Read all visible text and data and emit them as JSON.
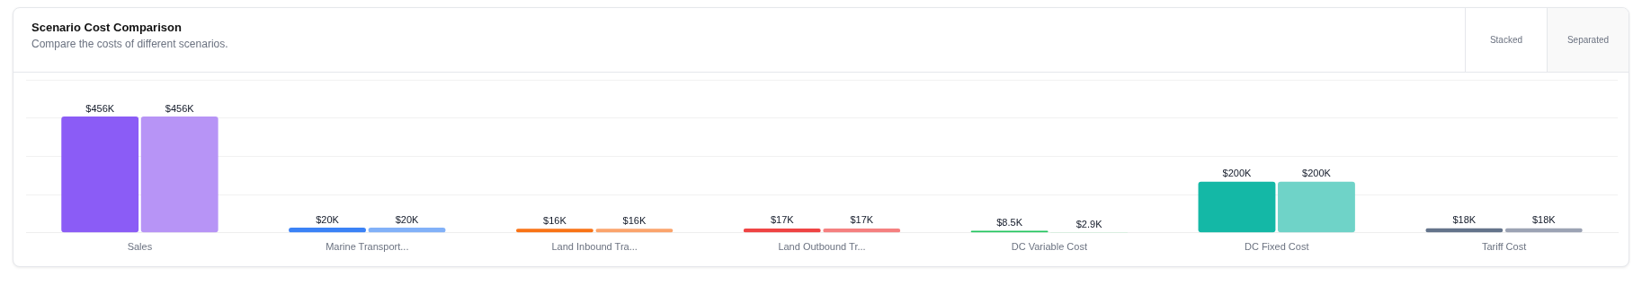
{
  "chart_data": {
    "type": "bar",
    "title": "Scenario Cost Comparison",
    "subtitle": "Compare the costs of different scenarios.",
    "annotations": [
      "Stacked",
      "Separated"
    ],
    "categories": [
      "Sales",
      "Marine Transport...",
      "Land Inbound Tra...",
      "Land Outbound Tr...",
      "DC Variable Cost",
      "DC Fixed Cost",
      "Tariff Cost"
    ],
    "series": [
      {
        "colors": [
          "#8b5cf6",
          "#3b82f6",
          "#f97316",
          "#ef4444",
          "#22c55e",
          "#14b8a6",
          "#64748b"
        ],
        "values": [
          456000,
          20000,
          16000,
          17000,
          8500,
          200000,
          18000
        ],
        "value_labels": [
          "$456K",
          "$20K",
          "$16K",
          "$17K",
          "$8.5K",
          "$200K",
          "$18K"
        ]
      },
      {
        "colors": [
          "#b794f6",
          "#82b1f8",
          "#fba46c",
          "#f58080",
          "#86efac",
          "#6fd3c8",
          "#9ca3b4"
        ],
        "values": [
          456000,
          20000,
          16000,
          17000,
          2900,
          200000,
          18000
        ],
        "value_labels": [
          "$456K",
          "$20K",
          "$16K",
          "$17K",
          "$2.9K",
          "$200K",
          "$18K"
        ]
      }
    ],
    "ylim": [
      0,
      600000
    ],
    "yticks": [
      {
        "value": 0,
        "label": null
      },
      {
        "value": 150000,
        "label": null
      },
      {
        "value": 300000,
        "label": null
      },
      {
        "value": 450000,
        "label": null
      },
      {
        "value": 600000,
        "label": null
      }
    ],
    "grid": "y",
    "tick_labels": "x"
  }
}
